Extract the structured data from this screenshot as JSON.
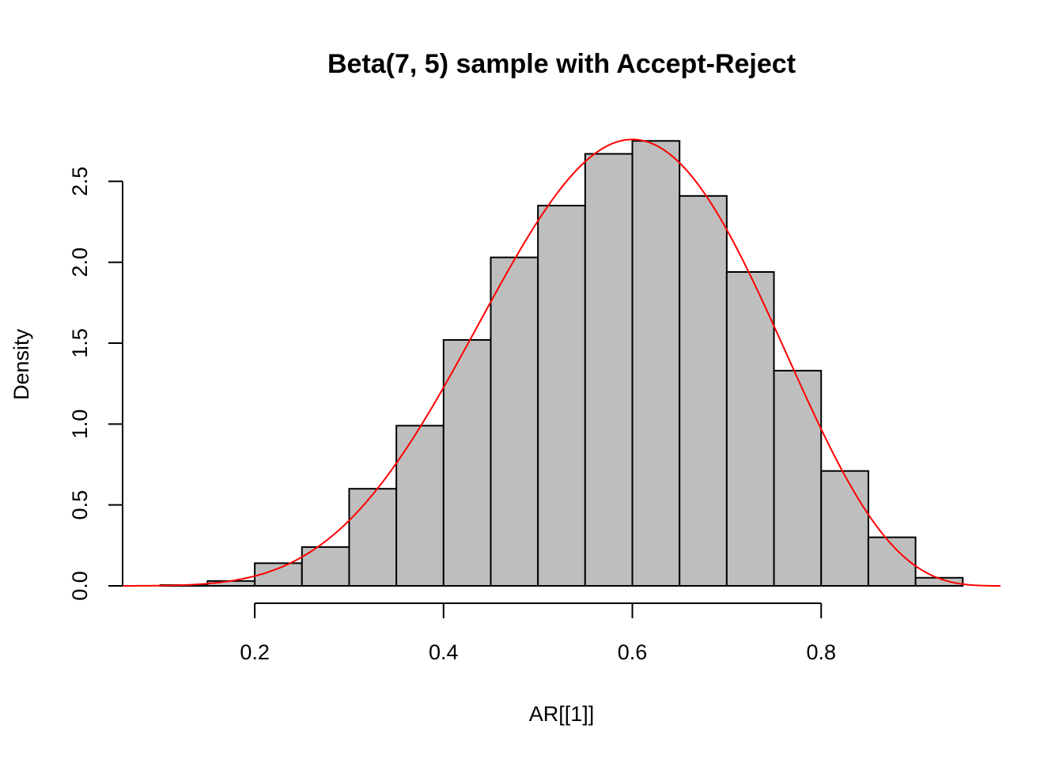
{
  "chart_data": {
    "type": "bar",
    "subtype": "histogram",
    "title": "Beta(7, 5) sample with Accept-Reject",
    "xlabel": "AR[[1]]",
    "ylabel": "Density",
    "xlim": [
      0.06,
      0.99
    ],
    "ylim": [
      0,
      2.8
    ],
    "x_ticks": [
      0.2,
      0.4,
      0.6,
      0.8
    ],
    "x_tick_labels": [
      "0.2",
      "0.4",
      "0.6",
      "0.8"
    ],
    "y_ticks": [
      0.0,
      0.5,
      1.0,
      1.5,
      2.0,
      2.5
    ],
    "y_tick_labels": [
      "0.0",
      "0.5",
      "1.0",
      "1.5",
      "2.0",
      "2.5"
    ],
    "bin_width": 0.05,
    "bins": [
      {
        "x0": 0.1,
        "x1": 0.15,
        "density": 0.005
      },
      {
        "x0": 0.15,
        "x1": 0.2,
        "density": 0.03
      },
      {
        "x0": 0.2,
        "x1": 0.25,
        "density": 0.14
      },
      {
        "x0": 0.25,
        "x1": 0.3,
        "density": 0.24
      },
      {
        "x0": 0.3,
        "x1": 0.35,
        "density": 0.6
      },
      {
        "x0": 0.35,
        "x1": 0.4,
        "density": 0.99
      },
      {
        "x0": 0.4,
        "x1": 0.45,
        "density": 1.52
      },
      {
        "x0": 0.45,
        "x1": 0.5,
        "density": 2.03
      },
      {
        "x0": 0.5,
        "x1": 0.55,
        "density": 2.35
      },
      {
        "x0": 0.55,
        "x1": 0.6,
        "density": 2.67
      },
      {
        "x0": 0.6,
        "x1": 0.65,
        "density": 2.75
      },
      {
        "x0": 0.65,
        "x1": 0.7,
        "density": 2.41
      },
      {
        "x0": 0.7,
        "x1": 0.75,
        "density": 1.94
      },
      {
        "x0": 0.75,
        "x1": 0.8,
        "density": 1.33
      },
      {
        "x0": 0.8,
        "x1": 0.85,
        "density": 0.71
      },
      {
        "x0": 0.85,
        "x1": 0.9,
        "density": 0.3
      },
      {
        "x0": 0.9,
        "x1": 0.95,
        "density": 0.05
      }
    ],
    "curve": {
      "function": "beta-density",
      "alpha": 7,
      "beta": 5,
      "x_range": [
        0.06,
        0.99
      ],
      "color": "#ff0000"
    },
    "bar_color": "#bebebe",
    "grid": false
  }
}
